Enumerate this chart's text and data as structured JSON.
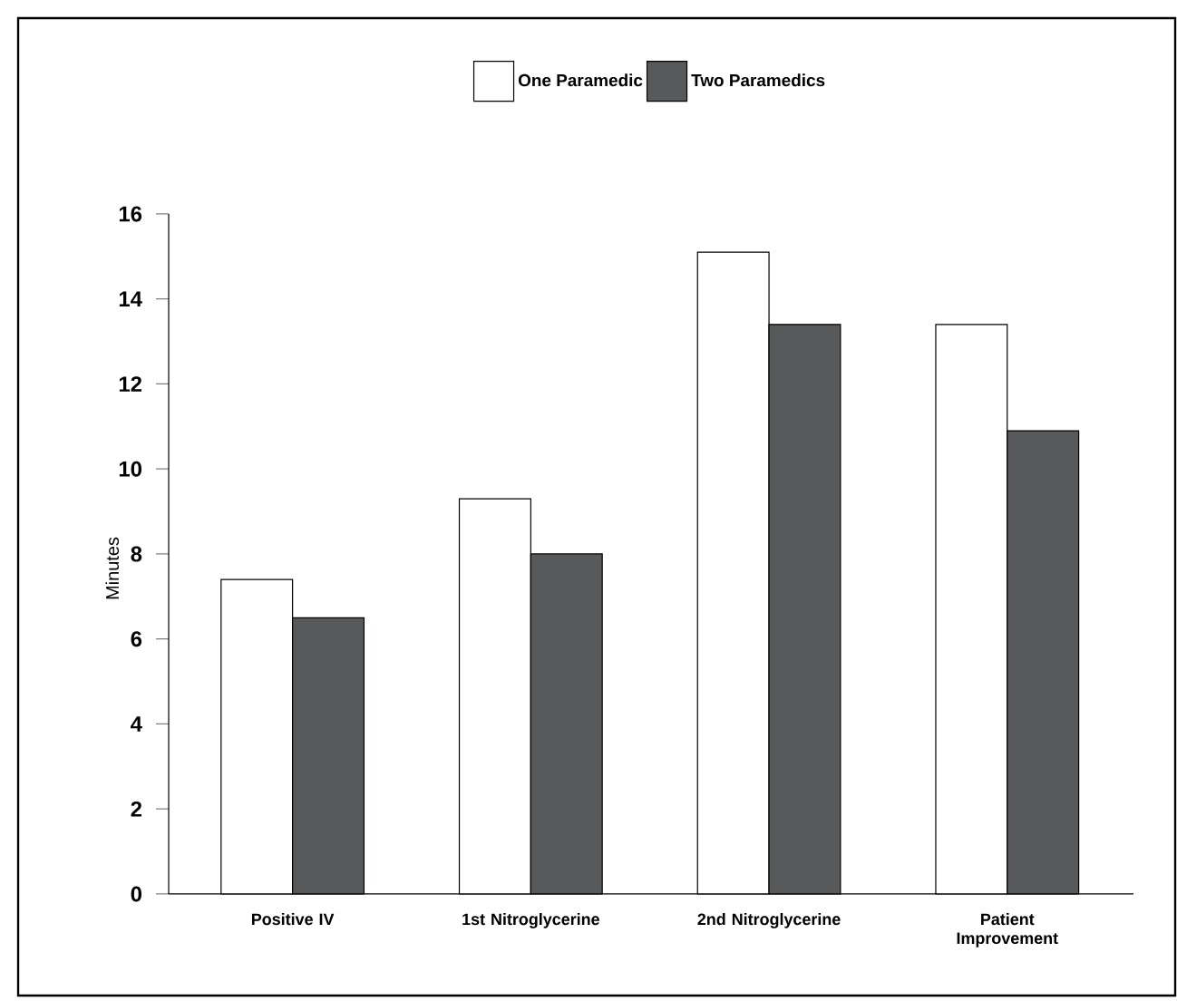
{
  "chart_data": {
    "type": "bar",
    "ylabel": "Minutes",
    "categories": [
      "Positive IV",
      "1st Nitroglycerine",
      "2nd Nitroglycerine",
      "Patient Improvement"
    ],
    "series": [
      {
        "name": "One Paramedic",
        "color": "#ffffff",
        "values": [
          7.4,
          9.3,
          15.1,
          13.4
        ]
      },
      {
        "name": "Two Paramedics",
        "color": "#58595b",
        "values": [
          6.5,
          8.0,
          13.4,
          10.9
        ]
      }
    ],
    "ylim": [
      0,
      16
    ],
    "yticks": [
      0,
      2,
      4,
      6,
      8,
      10,
      12,
      14,
      16
    ],
    "grid": false,
    "legend": "top"
  }
}
